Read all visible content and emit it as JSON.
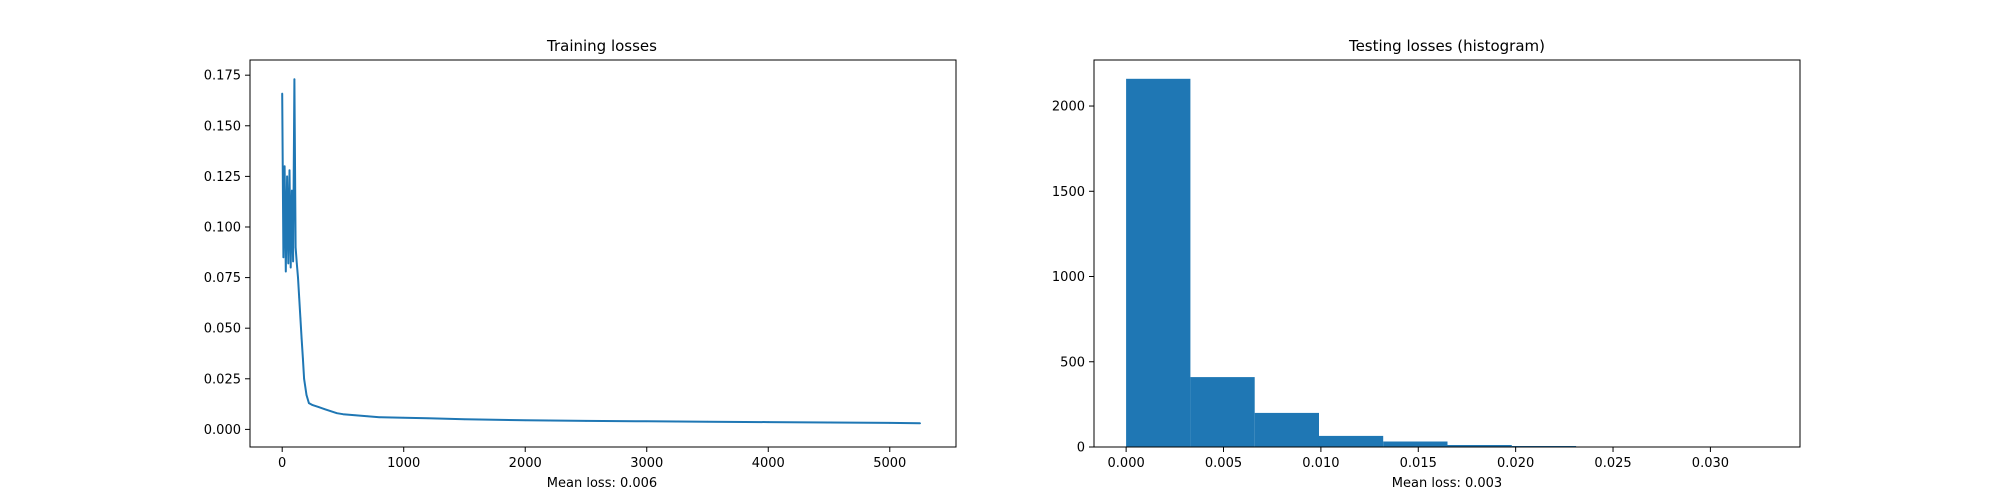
{
  "chart_data": [
    {
      "type": "line",
      "title": "Training losses",
      "xlabel": "Mean loss: 0.006",
      "ylabel": "",
      "xlim": [
        -265,
        5545
      ],
      "ylim": [
        -0.0087,
        0.1825
      ],
      "xticks": [
        0,
        1000,
        2000,
        3000,
        4000,
        5000
      ],
      "xtick_labels": [
        "0",
        "1000",
        "2000",
        "3000",
        "4000",
        "5000"
      ],
      "yticks": [
        0.0,
        0.025,
        0.05,
        0.075,
        0.1,
        0.125,
        0.15,
        0.175
      ],
      "ytick_labels": [
        "0.000",
        "0.025",
        "0.050",
        "0.075",
        "0.100",
        "0.125",
        "0.150",
        "0.175"
      ],
      "grid": false,
      "color": "#1f77b4",
      "series": [
        {
          "name": "",
          "x": [
            0,
            10,
            20,
            30,
            40,
            50,
            60,
            70,
            80,
            90,
            100,
            110,
            120,
            130,
            140,
            150,
            160,
            170,
            180,
            200,
            220,
            250,
            300,
            350,
            400,
            450,
            500,
            600,
            700,
            800,
            1000,
            1200,
            1500,
            2000,
            2500,
            3000,
            3500,
            4000,
            4500,
            5000,
            5250
          ],
          "y": [
            0.166,
            0.085,
            0.13,
            0.078,
            0.125,
            0.082,
            0.128,
            0.08,
            0.118,
            0.083,
            0.173,
            0.09,
            0.082,
            0.075,
            0.065,
            0.055,
            0.045,
            0.035,
            0.025,
            0.017,
            0.013,
            0.012,
            0.011,
            0.01,
            0.009,
            0.008,
            0.0075,
            0.007,
            0.0065,
            0.006,
            0.0058,
            0.0055,
            0.005,
            0.0045,
            0.0042,
            0.004,
            0.0038,
            0.0036,
            0.0034,
            0.0032,
            0.003
          ]
        }
      ]
    },
    {
      "type": "bar",
      "title": "Testing losses (histogram)",
      "xlabel": "Mean loss: 0.003",
      "ylabel": "",
      "xlim": [
        -0.00165,
        0.0346
      ],
      "ylim": [
        0,
        2270
      ],
      "xticks": [
        0.0,
        0.005,
        0.01,
        0.015,
        0.02,
        0.025,
        0.03
      ],
      "xtick_labels": [
        "0.000",
        "0.005",
        "0.010",
        "0.015",
        "0.020",
        "0.025",
        "0.030"
      ],
      "yticks": [
        0,
        500,
        1000,
        1500,
        2000
      ],
      "ytick_labels": [
        "0",
        "500",
        "1000",
        "1500",
        "2000"
      ],
      "grid": false,
      "color": "#1f77b4",
      "bin_edges": [
        0.0,
        0.0033,
        0.0066,
        0.0099,
        0.0132,
        0.0165,
        0.0198,
        0.0231,
        0.0264,
        0.0297,
        0.033
      ],
      "counts": [
        2160,
        410,
        200,
        65,
        32,
        12,
        6,
        2,
        3,
        2
      ]
    }
  ]
}
